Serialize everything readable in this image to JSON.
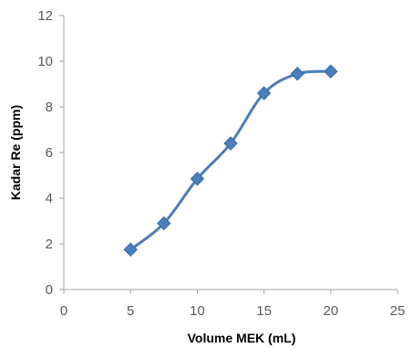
{
  "chart_data": {
    "type": "scatter",
    "title": "",
    "xlabel": "Volume MEK (mL)",
    "ylabel": "Kadar Re (ppm)",
    "xlim": [
      0,
      25
    ],
    "ylim": [
      0,
      12
    ],
    "x_ticks": [
      0,
      5,
      10,
      15,
      20,
      25
    ],
    "y_ticks": [
      0,
      2,
      4,
      6,
      8,
      10,
      12
    ],
    "grid": false,
    "smooth_line": true,
    "marker": "diamond",
    "colors": {
      "series": "#4a7ebb",
      "axis": "#a6a6a6",
      "tick_text": "#595959"
    },
    "series": [
      {
        "x": [
          5,
          7.5,
          10,
          12.5,
          15,
          17.5,
          20
        ],
        "y": [
          1.75,
          2.9,
          4.85,
          6.4,
          8.6,
          9.45,
          9.55
        ]
      }
    ]
  }
}
